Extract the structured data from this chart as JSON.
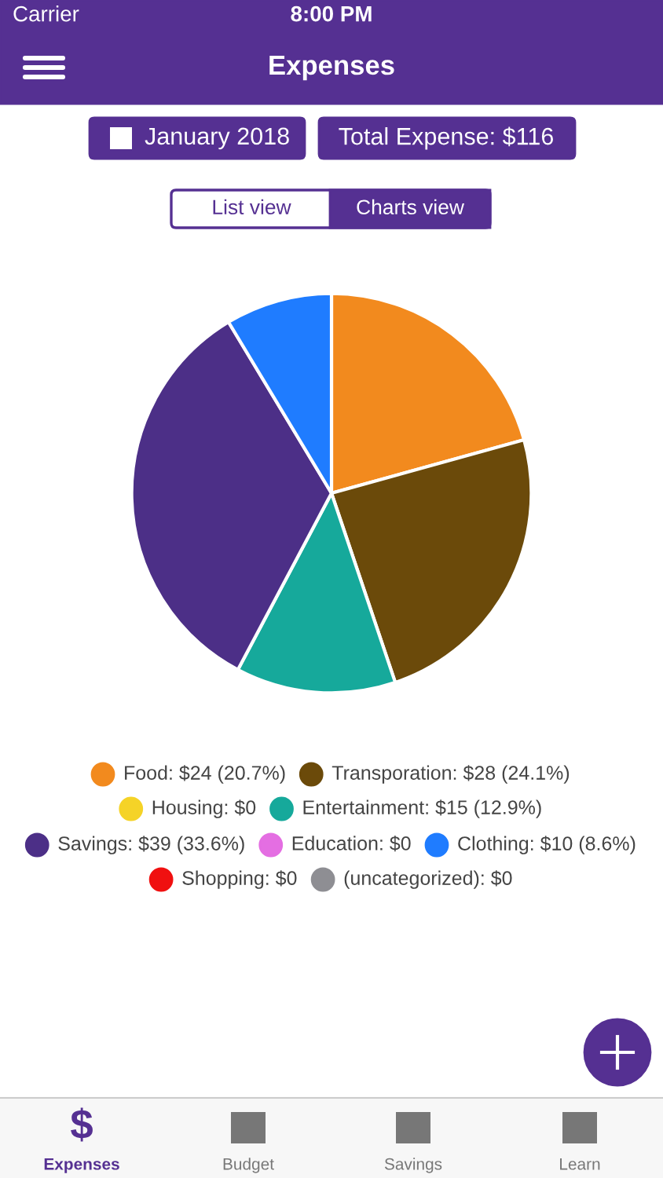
{
  "chart_data": {
    "type": "pie",
    "title": "Expenses",
    "categories": [
      "Food: $24 (20.7%)",
      "Transporation: $28 (24.1%)",
      "Housing: $0",
      "Entertainment: $15 (12.9%)",
      "Savings: $39 (33.6%)",
      "Education: $0",
      "Clothing: $10 (8.6%)",
      "Shopping: $0",
      "(uncategorized): $0"
    ],
    "values": [
      24,
      28,
      0,
      15,
      39,
      0,
      10,
      0,
      0
    ],
    "colors": [
      "#f28a1e",
      "#6b4a0a",
      "#f5d327",
      "#16a99b",
      "#4c2f87",
      "#e46ee2",
      "#1f7cff",
      "#f01010",
      "#8e8e93"
    ],
    "legend": "bottom",
    "annotations": [
      "Carrier",
      "8:00 PM",
      "January 2018",
      "Total Expense: $116",
      "List view",
      "Charts view",
      "Expenses",
      "Budget",
      "Savings",
      "Learn",
      "$"
    ]
  }
}
